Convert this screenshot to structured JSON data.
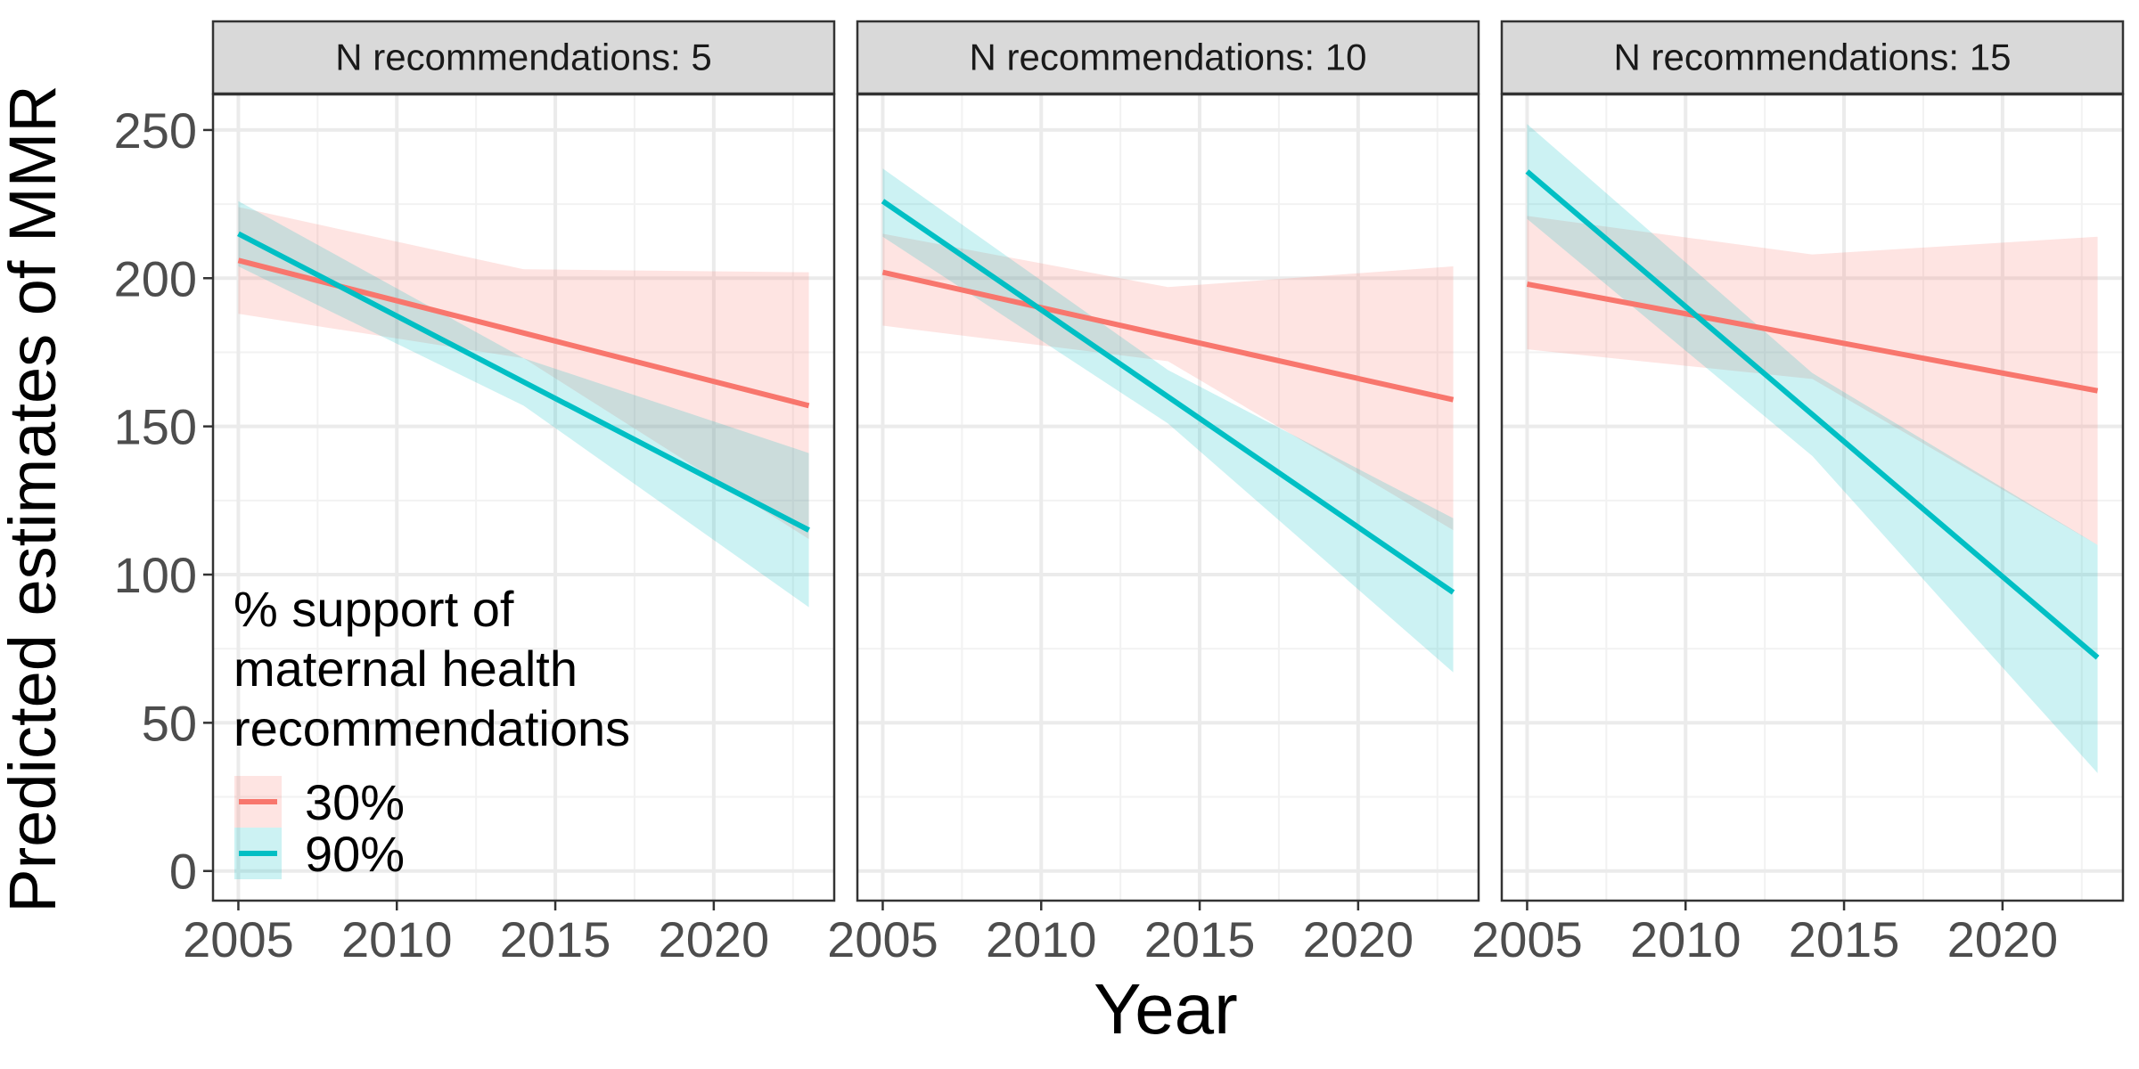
{
  "chart_data": {
    "type": "line",
    "ylabel": "Predicted estimates of MMR",
    "xlabel": "Year",
    "xlim": [
      2004.2,
      2023.8
    ],
    "ylim": [
      -10,
      262
    ],
    "x_ticks": [
      2005,
      2010,
      2015,
      2020
    ],
    "y_ticks": [
      0,
      50,
      100,
      150,
      200,
      250
    ],
    "grid": true,
    "legend": {
      "title_lines": [
        "% support of",
        "maternal health",
        "recommendations"
      ],
      "placement": "bottom-left",
      "entries": [
        {
          "label": "30%",
          "color": "#F8766D"
        },
        {
          "label": "90%",
          "color": "#00BFC4"
        }
      ]
    },
    "panels": [
      {
        "strip": "N recommendations: 5",
        "series": [
          {
            "name": "30%",
            "color": "#F8766D",
            "x": [
              2005,
              2014,
              2023
            ],
            "y": [
              206,
              181.5,
              157
            ],
            "lower": [
              188,
              173,
              112
            ],
            "upper": [
              224,
              203,
              202
            ]
          },
          {
            "name": "90%",
            "color": "#00BFC4",
            "x": [
              2005,
              2014,
              2023
            ],
            "y": [
              215,
              165,
              115
            ],
            "lower": [
              204,
              157,
              89
            ],
            "upper": [
              226,
              173,
              141
            ]
          }
        ]
      },
      {
        "strip": "N recommendations: 10",
        "series": [
          {
            "name": "30%",
            "color": "#F8766D",
            "x": [
              2005,
              2014,
              2023
            ],
            "y": [
              202,
              180.5,
              159
            ],
            "lower": [
              184,
              172,
              115
            ],
            "upper": [
              215,
              197,
              204
            ]
          },
          {
            "name": "90%",
            "color": "#00BFC4",
            "x": [
              2005,
              2014,
              2023
            ],
            "y": [
              226,
              160,
              94
            ],
            "lower": [
              214,
              151,
              67
            ],
            "upper": [
              237,
              169,
              119
            ]
          }
        ]
      },
      {
        "strip": "N recommendations: 15",
        "series": [
          {
            "name": "30%",
            "color": "#F8766D",
            "x": [
              2005,
              2014,
              2023
            ],
            "y": [
              198,
              180,
              162
            ],
            "lower": [
              176,
              166,
              110
            ],
            "upper": [
              221,
              208,
              214
            ]
          },
          {
            "name": "90%",
            "color": "#00BFC4",
            "x": [
              2005,
              2014,
              2023
            ],
            "y": [
              236,
              154,
              72
            ],
            "lower": [
              220,
              140,
              33
            ],
            "upper": [
              252,
              168,
              110
            ]
          }
        ]
      }
    ]
  }
}
